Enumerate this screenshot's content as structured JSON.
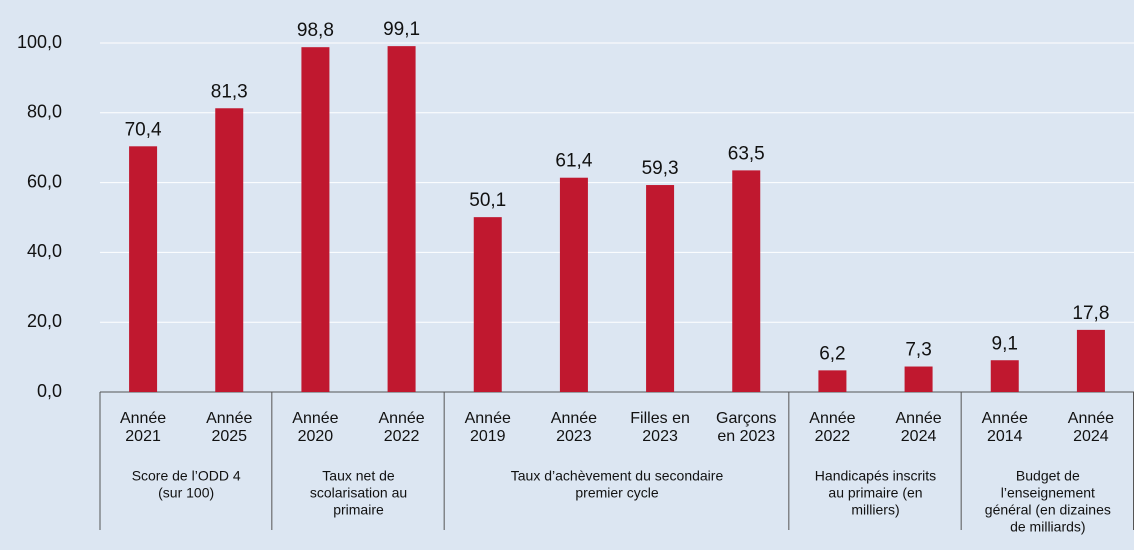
{
  "chart_data": {
    "type": "bar",
    "categories": [
      [
        "Année",
        "2021"
      ],
      [
        "Année",
        "2025"
      ],
      [
        "Année",
        "2020"
      ],
      [
        "Année",
        "2022"
      ],
      [
        "Année",
        "2019"
      ],
      [
        "Année",
        "2023"
      ],
      [
        "Filles en",
        "2023"
      ],
      [
        "Garçons",
        "en 2023"
      ],
      [
        "Année",
        "2022"
      ],
      [
        "Année",
        "2024"
      ],
      [
        "Année",
        "2014"
      ],
      [
        "Année",
        "2024"
      ]
    ],
    "groups": [
      {
        "name": [
          "Score de l’ODD 4",
          "(sur 100)"
        ],
        "size": 2
      },
      {
        "name": [
          "Taux net de",
          "scolarisation au",
          "primaire"
        ],
        "size": 2
      },
      {
        "name": [
          "Taux d’achèvement du secondaire",
          "premier cycle"
        ],
        "size": 4
      },
      {
        "name": [
          "Handicapés inscrits",
          "au primaire (en",
          "milliers)"
        ],
        "size": 2
      },
      {
        "name": [
          "Budget de",
          "l’enseignement",
          "général (en dizaines",
          "de milliards)"
        ],
        "size": 2
      }
    ],
    "values": [
      70.4,
      81.3,
      98.8,
      99.1,
      50.1,
      61.4,
      59.3,
      63.5,
      6.2,
      7.3,
      9.1,
      17.8
    ],
    "value_labels": [
      "70,4",
      "81,3",
      "98,8",
      "99,1",
      "50,1",
      "61,4",
      "59,3",
      "63,5",
      "6,2",
      "7,3",
      "9,1",
      "17,8"
    ],
    "color": "#c0182f",
    "ylim": [
      0,
      100
    ],
    "yticks": [
      {
        "value": 0,
        "label": "0,0"
      },
      {
        "value": 20,
        "label": "20,0"
      },
      {
        "value": 40,
        "label": "40,0"
      },
      {
        "value": 60,
        "label": "60,0"
      },
      {
        "value": 80,
        "label": "80,0"
      },
      {
        "value": 100,
        "label": "100,0"
      }
    ],
    "grid": true
  }
}
